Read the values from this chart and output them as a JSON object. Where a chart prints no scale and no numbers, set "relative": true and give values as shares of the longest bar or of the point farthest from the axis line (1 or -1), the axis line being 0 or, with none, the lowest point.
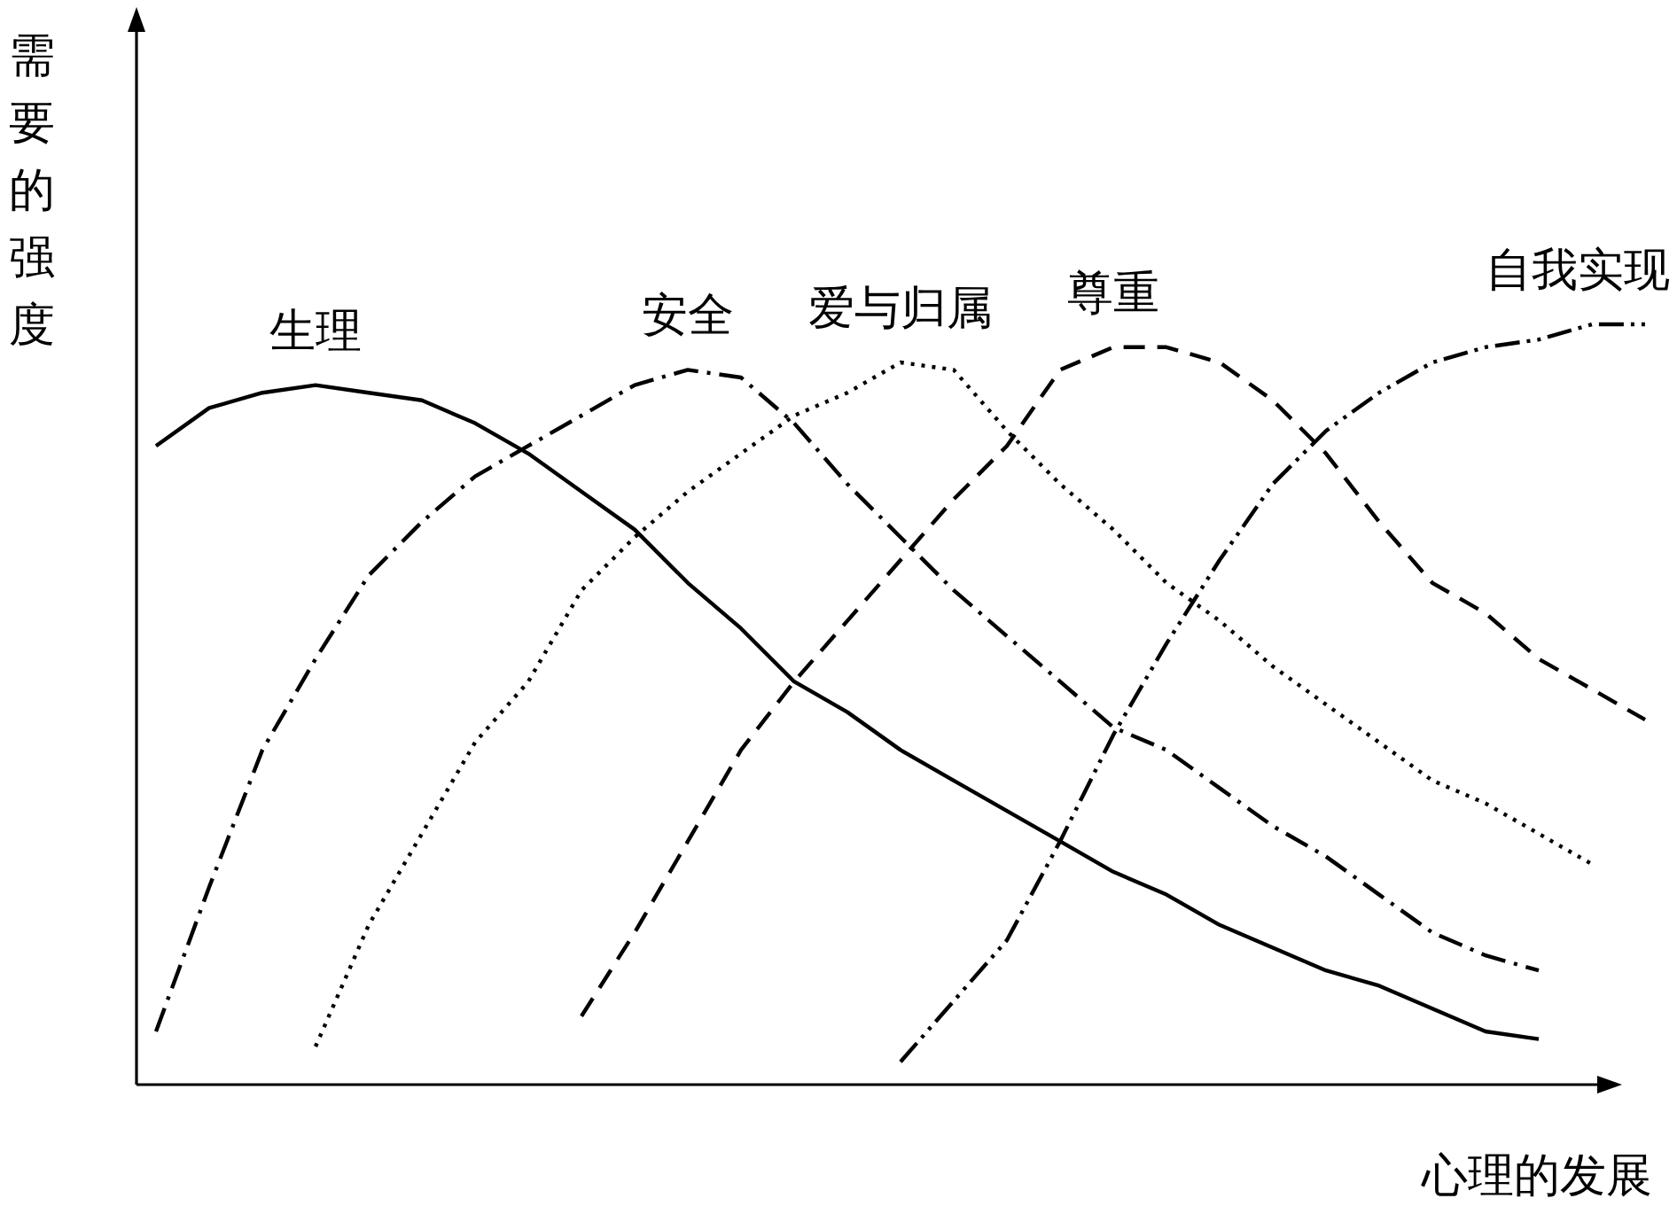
{
  "chart_data": {
    "type": "line",
    "relative": true,
    "ylabel": "需要的强度",
    "xlabel": "心理的发展",
    "legend": false,
    "grid": false,
    "marker": "none",
    "categories": [
      null,
      null,
      null,
      null,
      null,
      null,
      null,
      null,
      null,
      null,
      null,
      null,
      null,
      null,
      null,
      null,
      null,
      null,
      null,
      null,
      null,
      null,
      null,
      null,
      null,
      null,
      null,
      null,
      null
    ],
    "series": [
      {
        "name": "生理",
        "color": "#000000",
        "line_style": "solid",
        "values": [
          0.84,
          0.89,
          0.91,
          0.92,
          0.91,
          0.9,
          0.87,
          0.83,
          0.78,
          0.73,
          0.66,
          0.6,
          0.53,
          0.49,
          0.44,
          0.4,
          0.36,
          0.32,
          0.28,
          0.25,
          0.21,
          0.18,
          0.15,
          0.13,
          0.1,
          0.07,
          0.06,
          null,
          null
        ]
      },
      {
        "name": "安全",
        "color": "#000000",
        "line_style": "dashdot",
        "values": [
          0.07,
          0.26,
          0.44,
          0.56,
          0.67,
          0.74,
          0.8,
          0.84,
          0.88,
          0.92,
          0.94,
          0.93,
          0.87,
          0.79,
          0.72,
          0.65,
          0.59,
          0.53,
          0.47,
          0.44,
          0.39,
          0.34,
          0.3,
          0.25,
          0.2,
          0.17,
          0.15,
          null,
          null
        ]
      },
      {
        "name": "爱与归属",
        "color": "#000000",
        "line_style": "dotted",
        "values": [
          null,
          null,
          null,
          0.05,
          0.21,
          0.33,
          0.45,
          0.53,
          0.65,
          0.72,
          0.78,
          0.83,
          0.88,
          0.91,
          0.95,
          0.94,
          0.86,
          0.79,
          0.73,
          0.66,
          0.61,
          0.55,
          0.5,
          0.45,
          0.4,
          0.37,
          0.33,
          0.29,
          null
        ]
      },
      {
        "name": "尊重",
        "color": "#000000",
        "line_style": "dashed",
        "values": [
          null,
          null,
          null,
          null,
          null,
          null,
          null,
          null,
          0.09,
          0.2,
          0.32,
          0.44,
          0.53,
          0.61,
          0.69,
          0.77,
          0.84,
          0.94,
          0.97,
          0.97,
          0.95,
          0.9,
          0.83,
          0.74,
          0.66,
          0.62,
          0.56,
          0.52,
          0.48
        ]
      },
      {
        "name": "自我实现",
        "color": "#000000",
        "line_style": "dashdotdot",
        "values": [
          null,
          null,
          null,
          null,
          null,
          null,
          null,
          null,
          null,
          null,
          null,
          null,
          null,
          null,
          0.03,
          0.11,
          0.19,
          0.32,
          0.46,
          0.58,
          0.69,
          0.79,
          0.86,
          0.91,
          0.95,
          0.97,
          0.98,
          1,
          1
        ]
      }
    ]
  }
}
